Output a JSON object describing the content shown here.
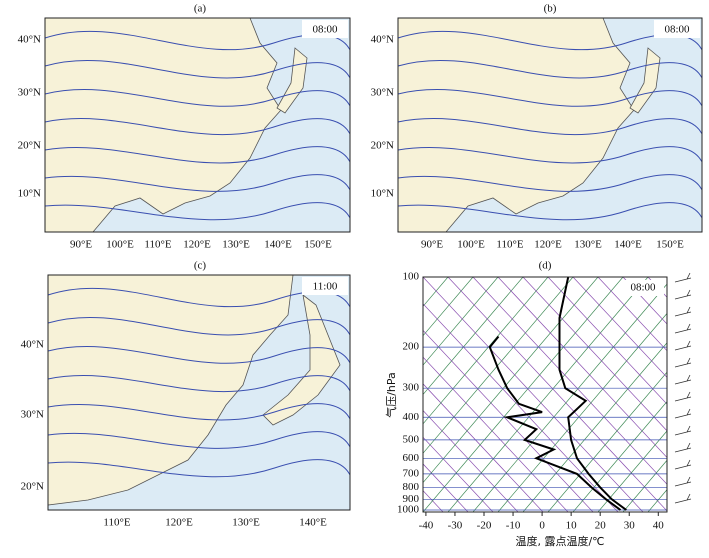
{
  "panels": [
    {
      "label": "(a)",
      "time": "08:00",
      "xticks": [
        "90°E",
        "100°E",
        "110°E",
        "120°E",
        "130°E",
        "140°E",
        "150°E"
      ],
      "yticks": [
        "40°N",
        "30°N",
        "20°N",
        "10°N"
      ]
    },
    {
      "label": "(b)",
      "time": "08:00",
      "xticks": [
        "90°E",
        "100°E",
        "110°E",
        "120°E",
        "130°E",
        "140°E",
        "150°E"
      ],
      "yticks": [
        "40°N",
        "30°N",
        "20°N",
        "10°N"
      ]
    },
    {
      "label": "(c)",
      "time": "11:00",
      "xticks": [
        "110°E",
        "120°E",
        "130°E",
        "140°E"
      ],
      "yticks": [
        "40°N",
        "30°N",
        "20°N"
      ]
    }
  ],
  "chart_data": {
    "type": "line",
    "label": "(d)",
    "time": "08:00",
    "xlabel": "温度, 露点温度/℃",
    "ylabel": "气压/hPa",
    "xlim": [
      -41,
      43
    ],
    "xticks": [
      -40,
      -30,
      -20,
      -10,
      0,
      10,
      20,
      30,
      40
    ],
    "ylim": [
      100,
      1020
    ],
    "yticks": [
      100,
      200,
      300,
      400,
      500,
      600,
      700,
      800,
      900,
      1000
    ],
    "ylog": true,
    "yreverse": true,
    "series": [
      {
        "color": "#000000",
        "pressure": [
          1000,
          900,
          800,
          700,
          600,
          500,
          400,
          340,
          300,
          250,
          200,
          150,
          100
        ],
        "values": [
          29,
          24,
          20,
          16,
          12,
          10,
          9,
          15,
          8,
          6,
          6,
          6,
          9
        ]
      },
      {
        "color": "#000000",
        "pressure": [
          1000,
          900,
          800,
          700,
          600,
          550,
          500,
          450,
          400,
          380,
          350,
          300,
          250,
          200,
          180
        ],
        "values": [
          27,
          22,
          17,
          12,
          -2,
          4,
          -6,
          -2,
          -12,
          0,
          -8,
          -12,
          -15,
          -18,
          -15
        ]
      }
    ]
  }
}
